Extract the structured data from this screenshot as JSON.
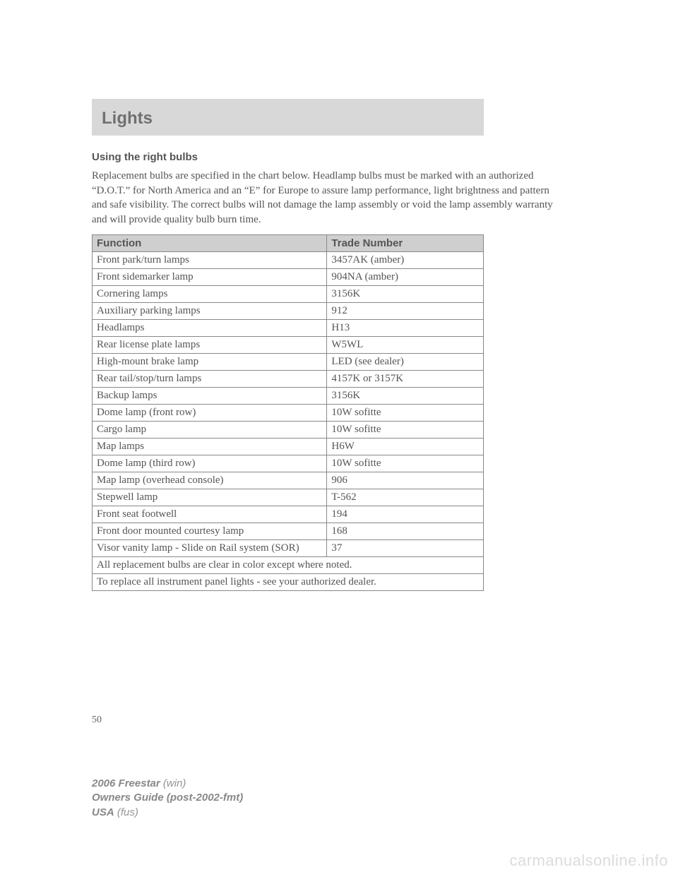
{
  "header": {
    "section_title": "Lights"
  },
  "section": {
    "heading": "Using the right bulbs",
    "paragraph": "Replacement bulbs are specified in the chart below. Headlamp bulbs must be marked with an authorized “D.O.T.” for North America and an “E” for Europe to assure lamp performance, light brightness and pattern and safe visibility. The correct bulbs will not damage the lamp assembly or void the lamp assembly warranty and will provide quality bulb burn time."
  },
  "table": {
    "columns": [
      "Function",
      "Trade Number"
    ],
    "rows": [
      [
        "Front park/turn lamps",
        "3457AK (amber)"
      ],
      [
        "Front sidemarker lamp",
        "904NA (amber)"
      ],
      [
        "Cornering lamps",
        "3156K"
      ],
      [
        "Auxiliary parking lamps",
        "912"
      ],
      [
        "Headlamps",
        "H13"
      ],
      [
        "Rear license plate lamps",
        "W5WL"
      ],
      [
        "High-mount brake lamp",
        "LED (see dealer)"
      ],
      [
        "Rear tail/stop/turn lamps",
        "4157K or 3157K"
      ],
      [
        "Backup lamps",
        "3156K"
      ],
      [
        "Dome lamp (front row)",
        "10W sofitte"
      ],
      [
        "Cargo lamp",
        "10W sofitte"
      ],
      [
        "Map lamps",
        "H6W"
      ],
      [
        "Dome lamp (third row)",
        "10W sofitte"
      ],
      [
        "Map lamp (overhead console)",
        "906"
      ],
      [
        "Stepwell lamp",
        "T-562"
      ],
      [
        "Front seat footwell",
        "194"
      ],
      [
        "Front door mounted courtesy lamp",
        "168"
      ],
      [
        "Visor vanity lamp - Slide on Rail system (SOR)",
        "37"
      ]
    ],
    "footer_rows": [
      "All replacement bulbs are clear in color except where noted.",
      "To replace all instrument panel lights - see your authorized dealer."
    ]
  },
  "page_number": "50",
  "footer": {
    "line1_bold": "2006 Freestar",
    "line1_rest": "(win)",
    "line2": "Owners Guide (post-2002-fmt)",
    "line3_bold": "USA",
    "line3_rest": "(fus)"
  },
  "watermark": "carmanualsonline.info"
}
